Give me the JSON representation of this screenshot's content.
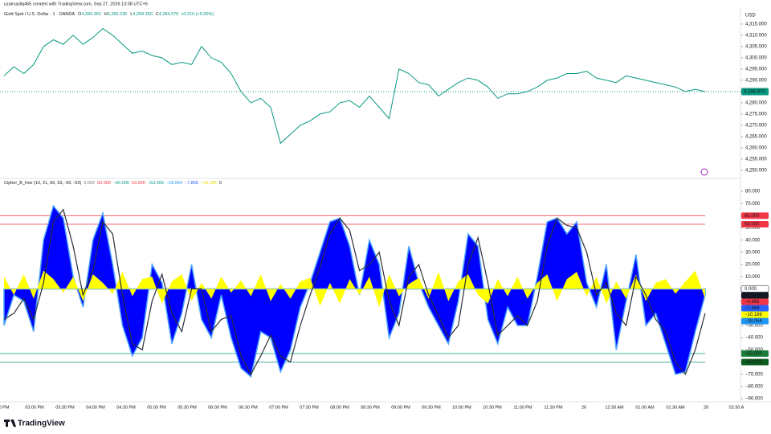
{
  "header": {
    "credit": "uzairsadiq455 created with TradingView.com, Sep 27, 2026 13:08 UTC+5",
    "symbol": "Gold Spot / U.S. Dollar · 1 · OANDA",
    "ohlc": [
      {
        "key": "O",
        "value": "4,284.350"
      },
      {
        "key": "H",
        "value": "4,285.235"
      },
      {
        "key": "L",
        "value": "4,284.350"
      },
      {
        "key": "C",
        "value": "4,284.970"
      }
    ],
    "change": "+0.210 (+0.00%)",
    "currency": "USD"
  },
  "footer": {
    "brand": "TradingView"
  },
  "x_labels": [
    "0 PM",
    "03:00 PM",
    "03:30 PM",
    "04:00 PM",
    "04:30 PM",
    "05:00 PM",
    "05:30 PM",
    "06:00 PM",
    "06:30 PM",
    "07:00 PM",
    "07:30 PM",
    "08:00 PM",
    "08:30 PM",
    "09:00 PM",
    "09:30 PM",
    "10:00 PM",
    "10:30 PM",
    "11:00 PM",
    "11:30 PM",
    "26",
    "12:30 AM",
    "01:00 AM",
    "01:30 AM",
    "28",
    "02:30 A"
  ],
  "chart_data": [
    {
      "type": "line",
      "ylim": [
        4246.4,
        4322.1
      ],
      "yticks": [
        {
          "value": 4250,
          "label": "4,250.000"
        },
        {
          "value": 4255,
          "label": "4,255.000"
        },
        {
          "value": 4260,
          "label": "4,260.000"
        },
        {
          "value": 4265,
          "label": "4,265.000"
        },
        {
          "value": 4270,
          "label": "4,270.000"
        },
        {
          "value": 4275,
          "label": "4,275.000"
        },
        {
          "value": 4280,
          "label": "4,280.000"
        },
        {
          "value": 4285,
          "label": "4,285.000"
        },
        {
          "value": 4290,
          "label": "4,290.000"
        },
        {
          "value": 4295,
          "label": "4,295.000"
        },
        {
          "value": 4300,
          "label": "4,300.000"
        },
        {
          "value": 4305,
          "label": "4,305.000"
        },
        {
          "value": 4310,
          "label": "4,310.000"
        },
        {
          "value": 4315,
          "label": "4,315.000"
        }
      ],
      "series": [
        {
          "name": "Close",
          "color": "#089981",
          "values": [
            4292,
            4296,
            4293,
            4297,
            4305,
            4308,
            4306,
            4310,
            4306,
            4309,
            4313,
            4310,
            4306,
            4302,
            4303,
            4301,
            4300,
            4297,
            4298,
            4297,
            4305,
            4300,
            4298,
            4293,
            4285,
            4280,
            4282,
            4278,
            4262,
            4266,
            4270,
            4272,
            4275,
            4276,
            4280,
            4281,
            4278,
            4283,
            4278,
            4273,
            4295,
            4293,
            4289,
            4288,
            4283,
            4286,
            4289,
            4291,
            4290,
            4287,
            4282,
            4284,
            4284,
            4285,
            4287,
            4290,
            4291,
            4293,
            4293,
            4294,
            4291,
            4290,
            4289,
            4292,
            4291,
            4290,
            4289,
            4288,
            4287,
            4285,
            4286,
            4284.97
          ]
        }
      ],
      "last_price": {
        "value": 4284.97,
        "label": "4,284.970",
        "color": "#089981"
      }
    },
    {
      "type": "oscillator",
      "title": "Cipher_B_free (10, 21, 60, 53, -60, -53)",
      "legend_values": [
        {
          "label": "0.000",
          "color": "#787b86"
        },
        {
          "label": "60.000",
          "color": "#f23645"
        },
        {
          "label": "−60.000",
          "color": "#089981"
        },
        {
          "label": "53.000",
          "color": "#f23645"
        },
        {
          "label": "−53.000",
          "color": "#089981"
        },
        {
          "label": "−18.054",
          "color": "#2196f3"
        },
        {
          "label": "−7.868",
          "color": "#2962ff"
        },
        {
          "label": "−10.186",
          "color": "#e6d600"
        },
        {
          "label": "0",
          "color": "#131722"
        }
      ],
      "ylim": [
        -92.6,
        86.6
      ],
      "yticks": [
        {
          "value": 80,
          "label": "80.000"
        },
        {
          "value": 70,
          "label": "70.000"
        },
        {
          "value": 60,
          "label": "60.000"
        },
        {
          "value": 50,
          "label": "50.000"
        },
        {
          "value": 40,
          "label": "40.000"
        },
        {
          "value": 30,
          "label": "30.000"
        },
        {
          "value": 20,
          "label": "20.000"
        },
        {
          "value": 10,
          "label": "10.000"
        },
        {
          "value": 0,
          "label": "0.000"
        },
        {
          "value": -10,
          "label": "−10.000"
        },
        {
          "value": -20,
          "label": "−20.000"
        },
        {
          "value": -30,
          "label": "−30.000"
        },
        {
          "value": -40,
          "label": "−40.000"
        },
        {
          "value": -50,
          "label": "−50.000"
        },
        {
          "value": -60,
          "label": "−60.000"
        },
        {
          "value": -70,
          "label": "−70.000"
        },
        {
          "value": -80,
          "label": "−80.000"
        },
        {
          "value": -90,
          "label": "−90.000"
        }
      ],
      "levels": [
        {
          "value": 60,
          "color": "#f23645"
        },
        {
          "value": 53,
          "color": "#f23645"
        },
        {
          "value": -53,
          "color": "#089981"
        },
        {
          "value": -60,
          "color": "#089981"
        }
      ],
      "series": [
        {
          "name": "Money Flow",
          "color": "#ffff00",
          "values": [
            10,
            -5,
            12,
            -8,
            15,
            8,
            -3,
            10,
            -10,
            12,
            5,
            -4,
            14,
            -6,
            8,
            10,
            -12,
            6,
            12,
            -10,
            5,
            -8,
            10,
            -3,
            7,
            -6,
            12,
            -10,
            4,
            -8,
            6,
            9,
            -14,
            5,
            -12,
            8,
            -5,
            10,
            -15,
            12,
            -6,
            4,
            9,
            -8,
            14,
            -10,
            6,
            12,
            -5,
            -12,
            8,
            -6,
            10,
            -8,
            5,
            12,
            -10,
            8,
            14,
            -6,
            10,
            -12,
            6,
            -8,
            12,
            -10,
            5,
            8,
            -4,
            6,
            15,
            -8
          ]
        },
        {
          "name": "WT1",
          "color": "#0000ff",
          "values": [
            -30,
            -5,
            -10,
            -35,
            40,
            68,
            58,
            10,
            -15,
            40,
            62,
            20,
            -30,
            -55,
            -40,
            20,
            5,
            -45,
            -20,
            20,
            -25,
            -40,
            -5,
            -40,
            -65,
            -72,
            -35,
            -40,
            -68,
            -50,
            -15,
            5,
            30,
            55,
            58,
            35,
            -5,
            40,
            20,
            -40,
            -20,
            35,
            5,
            -15,
            -30,
            -45,
            -10,
            45,
            35,
            -25,
            -45,
            -15,
            -30,
            -30,
            10,
            55,
            58,
            45,
            55,
            5,
            -15,
            20,
            -50,
            -10,
            28,
            -30,
            -20,
            -45,
            -70,
            -68,
            -35,
            -5
          ]
        },
        {
          "name": "WT2",
          "color": "#2a2e39",
          "values": [
            -25,
            -20,
            -8,
            -25,
            5,
            55,
            65,
            35,
            -5,
            15,
            55,
            45,
            -5,
            -45,
            -50,
            -10,
            12,
            -20,
            -35,
            0,
            0,
            -35,
            -25,
            -22,
            -55,
            -70,
            -55,
            -38,
            -55,
            -60,
            -30,
            -5,
            18,
            45,
            58,
            48,
            15,
            20,
            30,
            -10,
            -30,
            10,
            20,
            -5,
            -22,
            -40,
            -30,
            20,
            42,
            5,
            -38,
            -30,
            -22,
            -30,
            -10,
            35,
            58,
            52,
            50,
            30,
            -5,
            5,
            -20,
            -30,
            10,
            -5,
            -25,
            -35,
            -60,
            -70,
            -50,
            -20
          ]
        }
      ],
      "badges": [
        {
          "value": 60,
          "label": "60.000",
          "color": "#f23645"
        },
        {
          "value": 53,
          "label": "53.000",
          "color": "#f23645"
        },
        {
          "value": 0,
          "label": "0.000",
          "color": "#ffffff"
        },
        {
          "value": -4.866,
          "label": "−4.866",
          "color": "#131722"
        },
        {
          "value": -4.866,
          "label": "−4.866",
          "color": "#f23645"
        },
        {
          "value": -7.868,
          "label": "−7.868",
          "color": "#2962ff"
        },
        {
          "value": -10.186,
          "label": "−10.186",
          "color": "#ffff00"
        },
        {
          "value": -18.054,
          "label": "−18.054",
          "color": "#2196f3"
        },
        {
          "value": -53,
          "label": "−53.000",
          "color": "#1b7f3a"
        },
        {
          "value": -60,
          "label": "−60.000",
          "color": "#0b5d1e"
        }
      ]
    }
  ]
}
